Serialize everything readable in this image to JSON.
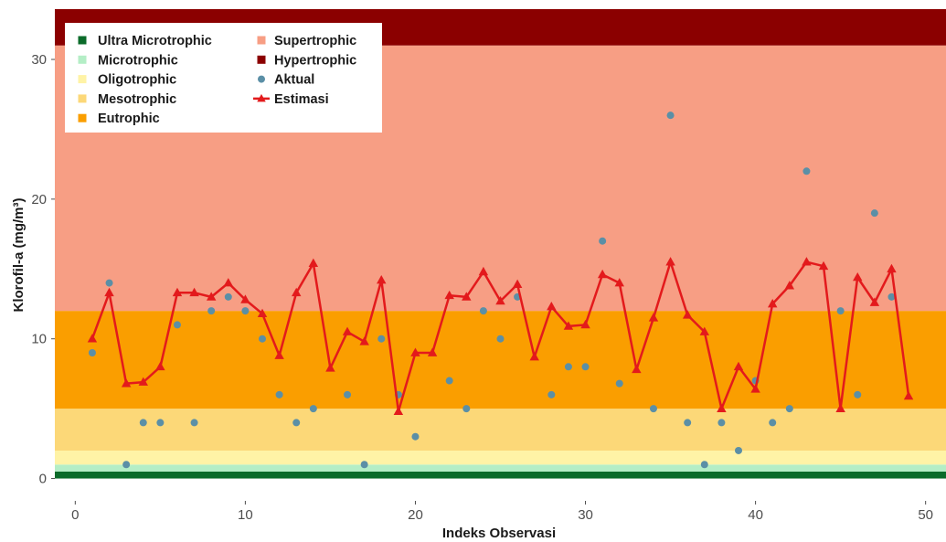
{
  "chart_data": {
    "type": "scatter",
    "xlabel": "Indeks Observasi",
    "ylabel": "Klorofil-a (mg/m³)",
    "xlim": [
      -1.2,
      51.2
    ],
    "ylim": [
      -1.6,
      33.6
    ],
    "x_ticks": [
      0,
      10,
      20,
      30,
      40,
      50
    ],
    "y_ticks": [
      0,
      10,
      20,
      30
    ],
    "grid": false,
    "legend_position": "top-left",
    "bands": [
      {
        "name": "Ultra Microtrophic",
        "from": 0,
        "to": 0.5,
        "color": "#0b6b2a"
      },
      {
        "name": "Microtrophic",
        "from": 0.5,
        "to": 1,
        "color": "#b4eec6"
      },
      {
        "name": "Oligotrophic",
        "from": 1,
        "to": 2,
        "color": "#fff3a6"
      },
      {
        "name": "Mesotrophic",
        "from": 2,
        "to": 5,
        "color": "#fcd878"
      },
      {
        "name": "Eutrophic",
        "from": 5,
        "to": 12,
        "color": "#fa9e00"
      },
      {
        "name": "Supertrophic",
        "from": 12,
        "to": 31,
        "color": "#f79e84"
      },
      {
        "name": "Hypertrophic",
        "from": 31,
        "to": 33.6,
        "color": "#8b0000"
      }
    ],
    "series": [
      {
        "name": "Aktual",
        "kind": "points",
        "color": "#5b8fa6",
        "x": [
          1,
          2,
          3,
          4,
          5,
          6,
          7,
          8,
          9,
          10,
          11,
          12,
          13,
          14,
          16,
          17,
          18,
          19,
          20,
          22,
          23,
          24,
          25,
          26,
          28,
          29,
          30,
          31,
          32,
          34,
          35,
          36,
          37,
          38,
          39,
          40,
          41,
          42,
          43,
          45,
          46,
          47,
          48
        ],
        "y": [
          9,
          14,
          1,
          4,
          4,
          11,
          4,
          12,
          13,
          12,
          10,
          6,
          4,
          5,
          6,
          1,
          10,
          6,
          3,
          7,
          5,
          12,
          10,
          13,
          6,
          8,
          8,
          17,
          6.8,
          5,
          26,
          4,
          1,
          4,
          2,
          7,
          4,
          5,
          22,
          12,
          6,
          19,
          13
        ]
      },
      {
        "name": "Estimasi",
        "kind": "line-triangles",
        "color": "#e31a1c",
        "x": [
          1,
          2,
          3,
          4,
          5,
          6,
          7,
          8,
          9,
          10,
          11,
          12,
          13,
          14,
          15,
          16,
          17,
          18,
          19,
          20,
          21,
          22,
          23,
          24,
          25,
          26,
          27,
          28,
          29,
          30,
          31,
          32,
          33,
          34,
          35,
          36,
          37,
          38,
          39,
          40,
          41,
          42,
          43,
          44,
          45,
          46,
          47,
          48,
          49
        ],
        "y": [
          10,
          13.3,
          6.8,
          6.9,
          8,
          13.3,
          13.3,
          13,
          14,
          12.8,
          11.8,
          8.8,
          13.3,
          15.4,
          7.9,
          10.5,
          9.8,
          14.2,
          4.8,
          9,
          9,
          13.1,
          13,
          14.8,
          12.7,
          13.9,
          8.7,
          12.3,
          10.9,
          11,
          14.6,
          14,
          7.8,
          11.5,
          15.5,
          11.7,
          10.5,
          5,
          8,
          6.4,
          12.5,
          13.8,
          15.5,
          15.2,
          5,
          14.4,
          12.6,
          15,
          5.9
        ]
      }
    ]
  }
}
